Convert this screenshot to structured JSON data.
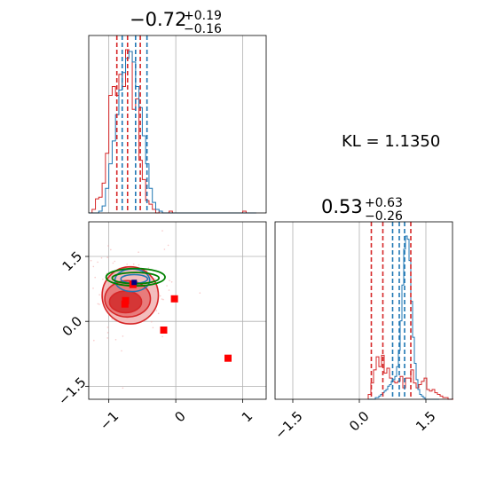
{
  "figure_type": "corner plot",
  "colors": {
    "red": "#d62728",
    "blue": "#1f77b4",
    "green": "#008000",
    "grid": "#b0b0b0",
    "light_red": "#f2b6b6",
    "mid_red": "#e77373",
    "dark_red": "#d32f2f",
    "marker": "#ff0000",
    "marker_dark": "#000080"
  },
  "kl_text": "KL = 1.1350",
  "chart_data": [
    {
      "panel": "top-left",
      "type": "histogram",
      "title": {
        "main": "−0.72",
        "sup": "+0.19",
        "sub": "−0.16"
      },
      "xlim": [
        -1.3,
        1.35
      ],
      "grid_x": [
        -1,
        0,
        1
      ],
      "quantiles_red": [
        -0.88,
        -0.72,
        -0.53
      ],
      "quantiles_blue": [
        -0.8,
        -0.6,
        -0.43
      ],
      "series": [
        {
          "color": "red",
          "x_start": -1.3,
          "bin_width": 0.05,
          "counts": [
            0,
            2,
            8,
            9,
            17,
            34,
            67,
            72,
            67,
            79,
            72,
            93,
            92,
            59,
            65,
            30,
            19,
            7,
            5,
            2,
            0,
            1,
            0,
            0,
            1,
            0,
            0,
            0,
            0,
            0,
            0,
            0,
            0,
            0,
            0,
            0,
            0,
            0,
            0,
            0,
            0,
            0,
            0,
            0,
            0,
            0,
            1,
            0,
            0,
            0
          ]
        },
        {
          "color": "blue",
          "x_start": -1.3,
          "bin_width": 0.05,
          "counts": [
            0,
            0,
            0,
            1,
            4,
            14,
            28,
            41,
            56,
            70,
            80,
            88,
            92,
            86,
            72,
            60,
            44,
            28,
            14,
            6,
            2,
            1,
            0,
            0,
            0,
            0,
            0,
            0,
            0,
            0,
            0,
            0,
            0,
            0,
            0,
            0,
            0,
            0,
            0,
            0,
            0,
            0,
            0,
            0,
            0,
            0,
            0,
            0,
            0,
            0
          ]
        }
      ]
    },
    {
      "panel": "bottom-right",
      "type": "histogram",
      "title": {
        "main": "0.53",
        "sup": "+0.63",
        "sub": "−0.26"
      },
      "xlim": [
        -1.9,
        2.1
      ],
      "xticks": [
        -1.5,
        0.0,
        1.5
      ],
      "xtick_labels": [
        "−1.5",
        "0.0",
        "1.5"
      ],
      "quantiles_red": [
        0.27,
        0.53,
        1.16
      ],
      "quantiles_blue": [
        0.75,
        0.9,
        1.02
      ],
      "series": [
        {
          "color": "red",
          "x_start": 0.2,
          "bin_width": 0.06,
          "counts": [
            3,
            10,
            18,
            26,
            20,
            27,
            16,
            19,
            13,
            11,
            10,
            11,
            14,
            7,
            13,
            13,
            18,
            10,
            7,
            9,
            11,
            13,
            6,
            5,
            6,
            4,
            3,
            2,
            1,
            1,
            0,
            0
          ]
        },
        {
          "color": "blue",
          "x_start": 0.2,
          "bin_width": 0.04,
          "counts": [
            0,
            0,
            0,
            0,
            1,
            1,
            2,
            3,
            4,
            5,
            6,
            8,
            9,
            11,
            12,
            14,
            20,
            30,
            48,
            70,
            92,
            100,
            98,
            85,
            60,
            38,
            22,
            12,
            6,
            3,
            2,
            1,
            0,
            0,
            0,
            0,
            0,
            0,
            0,
            0
          ]
        }
      ]
    },
    {
      "panel": "bottom-left",
      "type": "scatter",
      "xlim": [
        -1.3,
        1.35
      ],
      "ylim": [
        -1.8,
        2.3
      ],
      "xticks": [
        -1,
        0,
        1
      ],
      "xtick_labels": [
        "−1",
        "0",
        "1"
      ],
      "yticks": [
        -1.5,
        0.0,
        1.5
      ],
      "ytick_labels": [
        "−1.5",
        "0.0",
        "1.5"
      ],
      "red_contours": [
        {
          "level": "outer",
          "cx": -0.68,
          "cy": 0.6,
          "rx": 0.42,
          "ry": 0.66
        },
        {
          "level": "middle",
          "cx": -0.72,
          "cy": 0.52,
          "rx": 0.34,
          "ry": 0.42
        },
        {
          "level": "inner",
          "cx": -0.75,
          "cy": 0.45,
          "rx": 0.24,
          "ry": 0.25
        }
      ],
      "blue_contours": [
        {
          "cx": -0.65,
          "cy": 0.95,
          "rx": 0.26,
          "ry": 0.26
        },
        {
          "cx": -0.62,
          "cy": 0.98,
          "rx": 0.2,
          "ry": 0.1
        }
      ],
      "green_contours": [
        {
          "cx": -0.6,
          "cy": 1.02,
          "rx": 0.44,
          "ry": 0.2
        },
        {
          "cx": -0.6,
          "cy": 1.0,
          "rx": 0.35,
          "ry": 0.13
        }
      ],
      "markers_red": [
        {
          "x": -0.64,
          "y": 0.85
        },
        {
          "x": -0.75,
          "y": 0.48
        },
        {
          "x": -0.76,
          "y": 0.4
        },
        {
          "x": -0.02,
          "y": 0.52
        },
        {
          "x": -0.18,
          "y": -0.2
        },
        {
          "x": 0.78,
          "y": -0.85
        }
      ],
      "marker_dark": {
        "x": -0.62,
        "y": 0.9
      }
    }
  ]
}
